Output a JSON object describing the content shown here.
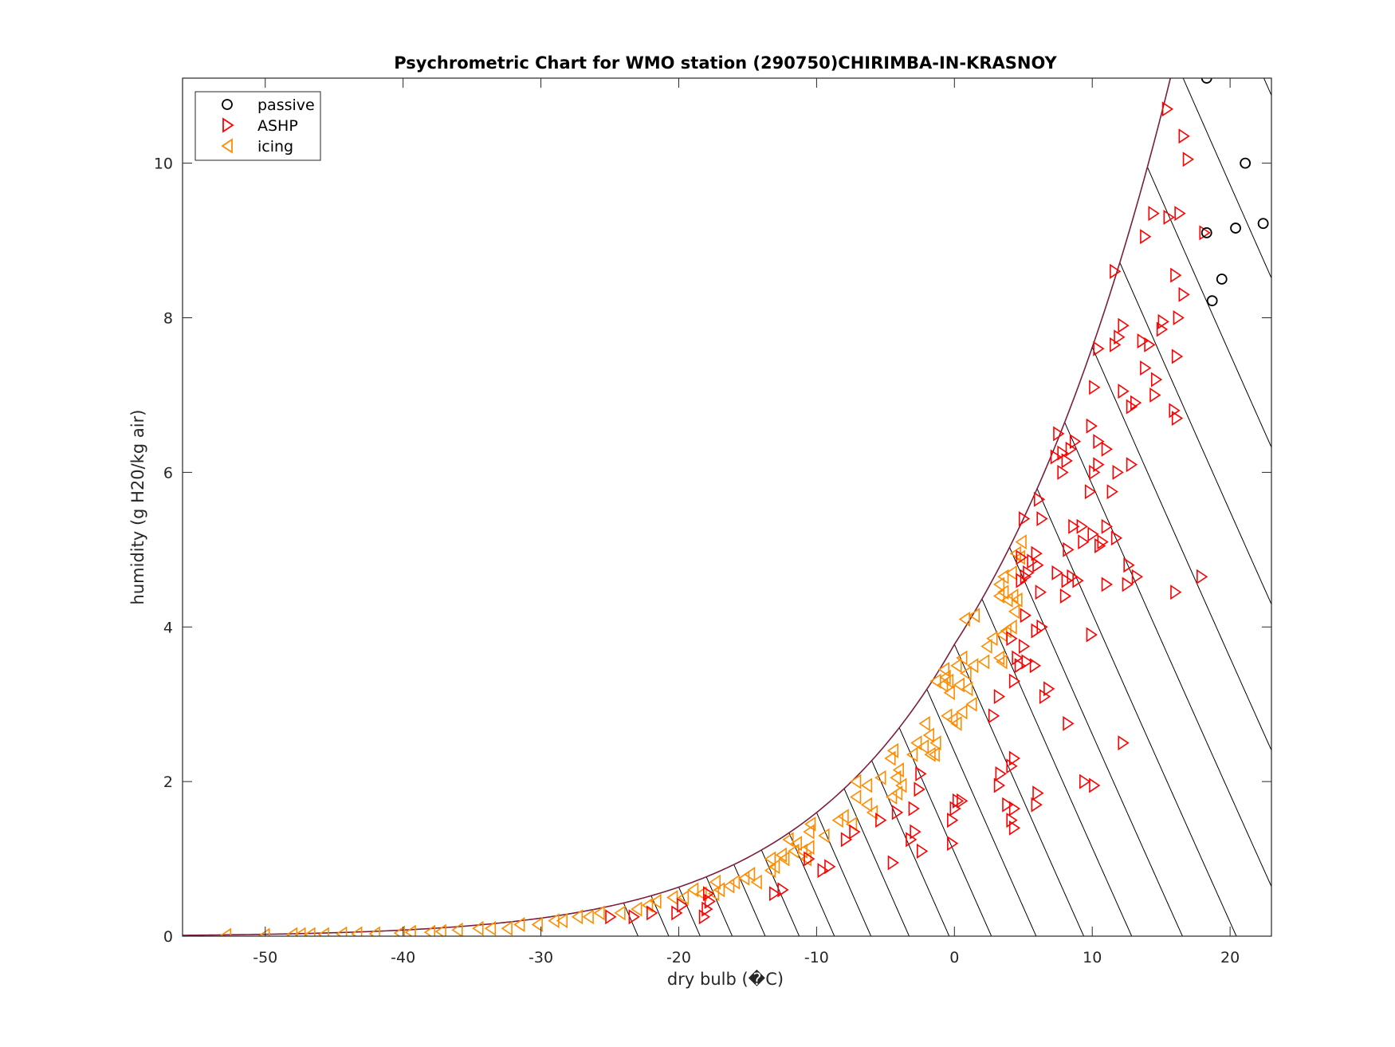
{
  "chart_data": {
    "type": "scatter",
    "title": "Psychrometric Chart for WMO station (290750)CHIRIMBA-IN-KRASNOY",
    "xlabel": "dry bulb (�C)",
    "ylabel": "humidity (g H20/kg air)",
    "xlim": [
      -56,
      23
    ],
    "ylim": [
      0,
      11.1
    ],
    "xticks": [
      -50,
      -40,
      -30,
      -20,
      -10,
      0,
      10,
      20
    ],
    "yticks": [
      0,
      2,
      4,
      6,
      8,
      10
    ],
    "grid": false,
    "legend_position": "top-left",
    "saturation_curve_color": "#7a1f3d",
    "enthalpy_line_color": "#000000",
    "series": [
      {
        "name": "passive",
        "marker": "circle",
        "color": "#000000",
        "points": [
          [
            18.3,
            11.1
          ],
          [
            21.1,
            10.0
          ],
          [
            22.4,
            9.22
          ],
          [
            20.4,
            9.16
          ],
          [
            18.3,
            9.1
          ],
          [
            19.4,
            8.5
          ],
          [
            18.7,
            8.22
          ]
        ]
      },
      {
        "name": "ASHP",
        "marker": "triangle-right",
        "color": "#ff0000",
        "points": [
          [
            15.4,
            10.7
          ],
          [
            16.6,
            10.35
          ],
          [
            16.9,
            10.05
          ],
          [
            14.4,
            9.35
          ],
          [
            15.5,
            9.3
          ],
          [
            16.3,
            9.35
          ],
          [
            18.1,
            9.1
          ],
          [
            13.8,
            9.05
          ],
          [
            11.6,
            8.6
          ],
          [
            16.0,
            8.55
          ],
          [
            16.6,
            8.3
          ],
          [
            16.2,
            8.0
          ],
          [
            15.1,
            7.95
          ],
          [
            15.0,
            7.85
          ],
          [
            12.2,
            7.9
          ],
          [
            13.6,
            7.7
          ],
          [
            14.1,
            7.65
          ],
          [
            11.6,
            7.65
          ],
          [
            11.9,
            7.75
          ],
          [
            10.4,
            7.6
          ],
          [
            16.1,
            7.5
          ],
          [
            13.8,
            7.35
          ],
          [
            14.6,
            7.2
          ],
          [
            12.2,
            7.05
          ],
          [
            10.1,
            7.1
          ],
          [
            14.5,
            7.0
          ],
          [
            13.1,
            6.9
          ],
          [
            12.8,
            6.85
          ],
          [
            15.9,
            6.8
          ],
          [
            16.1,
            6.7
          ],
          [
            9.9,
            6.6
          ],
          [
            7.5,
            6.5
          ],
          [
            10.4,
            6.4
          ],
          [
            8.7,
            6.4
          ],
          [
            8.4,
            6.3
          ],
          [
            11.0,
            6.3
          ],
          [
            7.8,
            6.25
          ],
          [
            7.3,
            6.2
          ],
          [
            8.1,
            6.15
          ],
          [
            12.8,
            6.1
          ],
          [
            10.4,
            6.1
          ],
          [
            10.1,
            6.0
          ],
          [
            11.8,
            6.0
          ],
          [
            7.8,
            6.0
          ],
          [
            11.4,
            5.75
          ],
          [
            9.8,
            5.75
          ],
          [
            6.1,
            5.65
          ],
          [
            6.3,
            5.4
          ],
          [
            5.0,
            5.4
          ],
          [
            9.2,
            5.3
          ],
          [
            11.0,
            5.3
          ],
          [
            8.6,
            5.3
          ],
          [
            10.0,
            5.2
          ],
          [
            11.7,
            5.15
          ],
          [
            10.7,
            5.1
          ],
          [
            9.3,
            5.1
          ],
          [
            10.5,
            5.05
          ],
          [
            8.2,
            5.0
          ],
          [
            5.9,
            4.95
          ],
          [
            4.8,
            4.9
          ],
          [
            5.6,
            4.85
          ],
          [
            6.0,
            4.8
          ],
          [
            12.6,
            4.8
          ],
          [
            7.4,
            4.7
          ],
          [
            5.3,
            4.7
          ],
          [
            5.1,
            4.65
          ],
          [
            4.8,
            4.6
          ],
          [
            13.2,
            4.65
          ],
          [
            17.9,
            4.65
          ],
          [
            8.5,
            4.65
          ],
          [
            8.9,
            4.6
          ],
          [
            8.1,
            4.6
          ],
          [
            11.0,
            4.55
          ],
          [
            12.5,
            4.55
          ],
          [
            16.0,
            4.45
          ],
          [
            6.2,
            4.45
          ],
          [
            8.0,
            4.4
          ],
          [
            5.1,
            4.15
          ],
          [
            6.3,
            4.0
          ],
          [
            5.9,
            3.95
          ],
          [
            4.1,
            3.85
          ],
          [
            9.9,
            3.9
          ],
          [
            5.0,
            3.75
          ],
          [
            4.5,
            3.6
          ],
          [
            5.2,
            3.55
          ],
          [
            5.8,
            3.5
          ],
          [
            4.7,
            3.5
          ],
          [
            4.3,
            3.3
          ],
          [
            6.8,
            3.2
          ],
          [
            3.2,
            3.1
          ],
          [
            6.5,
            3.1
          ],
          [
            2.8,
            2.85
          ],
          [
            8.2,
            2.75
          ],
          [
            12.2,
            2.5
          ],
          [
            4.3,
            2.3
          ],
          [
            4.1,
            2.2
          ],
          [
            3.3,
            2.1
          ],
          [
            -2.5,
            2.1
          ],
          [
            3.2,
            1.95
          ],
          [
            9.4,
            2.0
          ],
          [
            10.1,
            1.95
          ],
          [
            -2.6,
            1.9
          ],
          [
            6.0,
            1.85
          ],
          [
            5.9,
            1.7
          ],
          [
            0.2,
            1.75
          ],
          [
            0.5,
            1.75
          ],
          [
            0.0,
            1.65
          ],
          [
            3.8,
            1.7
          ],
          [
            -3.0,
            1.65
          ],
          [
            4.3,
            1.65
          ],
          [
            -4.2,
            1.6
          ],
          [
            -0.2,
            1.5
          ],
          [
            4.1,
            1.5
          ],
          [
            -5.4,
            1.5
          ],
          [
            4.3,
            1.4
          ],
          [
            -2.9,
            1.35
          ],
          [
            -3.2,
            1.25
          ],
          [
            -7.3,
            1.35
          ],
          [
            -7.9,
            1.25
          ],
          [
            -0.2,
            1.2
          ],
          [
            -2.4,
            1.1
          ],
          [
            -10.6,
            1.0
          ],
          [
            -4.5,
            0.95
          ],
          [
            -9.1,
            0.9
          ],
          [
            -9.6,
            0.85
          ],
          [
            -12.5,
            0.6
          ],
          [
            -13.1,
            0.55
          ],
          [
            -17.9,
            0.55
          ],
          [
            -17.8,
            0.45
          ],
          [
            -19.8,
            0.4
          ],
          [
            -18.0,
            0.35
          ],
          [
            -18.2,
            0.25
          ],
          [
            -22.0,
            0.3
          ],
          [
            -20.2,
            0.3
          ],
          [
            -23.3,
            0.25
          ],
          [
            -25.0,
            0.25
          ]
        ]
      },
      {
        "name": "icing",
        "marker": "triangle-left",
        "color": "#ff8c00",
        "points": [
          [
            4.9,
            5.1
          ],
          [
            4.5,
            4.95
          ],
          [
            4.8,
            4.9
          ],
          [
            4.2,
            4.7
          ],
          [
            3.6,
            4.65
          ],
          [
            3.3,
            4.55
          ],
          [
            4.3,
            4.4
          ],
          [
            3.6,
            4.45
          ],
          [
            3.3,
            4.4
          ],
          [
            3.9,
            4.35
          ],
          [
            4.6,
            4.35
          ],
          [
            4.4,
            4.2
          ],
          [
            1.5,
            4.15
          ],
          [
            0.8,
            4.1
          ],
          [
            4.2,
            4.0
          ],
          [
            3.8,
            3.95
          ],
          [
            3.5,
            3.9
          ],
          [
            2.8,
            3.85
          ],
          [
            2.4,
            3.75
          ],
          [
            3.3,
            3.6
          ],
          [
            3.5,
            3.55
          ],
          [
            2.2,
            3.55
          ],
          [
            1.4,
            3.5
          ],
          [
            0.6,
            3.6
          ],
          [
            0.2,
            3.5
          ],
          [
            0.9,
            3.4
          ],
          [
            -0.7,
            3.45
          ],
          [
            -0.4,
            3.3
          ],
          [
            0.4,
            3.25
          ],
          [
            -0.3,
            3.15
          ],
          [
            1.0,
            3.2
          ],
          [
            -1.3,
            3.3
          ],
          [
            -0.6,
            3.35
          ],
          [
            -0.8,
            3.25
          ],
          [
            1.3,
            3.0
          ],
          [
            0.6,
            2.9
          ],
          [
            -0.1,
            2.8
          ],
          [
            0.2,
            2.75
          ],
          [
            -0.5,
            2.85
          ],
          [
            -2.1,
            2.75
          ],
          [
            -1.8,
            2.6
          ],
          [
            -2.7,
            2.5
          ],
          [
            -1.3,
            2.5
          ],
          [
            -1.7,
            2.35
          ],
          [
            -2.2,
            2.45
          ],
          [
            -4.4,
            2.4
          ],
          [
            -3.0,
            2.35
          ],
          [
            -1.4,
            2.35
          ],
          [
            -4.6,
            2.3
          ],
          [
            -4.0,
            2.15
          ],
          [
            -4.2,
            2.05
          ],
          [
            -5.3,
            2.05
          ],
          [
            -7.1,
            2.0
          ],
          [
            -6.3,
            1.95
          ],
          [
            -3.8,
            1.95
          ],
          [
            -4.1,
            1.85
          ],
          [
            -4.5,
            1.8
          ],
          [
            -7.1,
            1.8
          ],
          [
            -6.3,
            1.7
          ],
          [
            -5.9,
            1.6
          ],
          [
            -8.0,
            1.55
          ],
          [
            -8.4,
            1.5
          ],
          [
            -7.4,
            1.45
          ],
          [
            -10.4,
            1.45
          ],
          [
            -10.5,
            1.35
          ],
          [
            -9.4,
            1.3
          ],
          [
            -12.0,
            1.25
          ],
          [
            -11.4,
            1.2
          ],
          [
            -10.5,
            1.15
          ],
          [
            -11.6,
            1.1
          ],
          [
            -12.5,
            1.05
          ],
          [
            -11.0,
            1.1
          ],
          [
            -10.7,
            1.0
          ],
          [
            -12.3,
            1.0
          ],
          [
            -13.3,
            1.0
          ],
          [
            -13.0,
            0.9
          ],
          [
            -13.3,
            0.85
          ],
          [
            -14.8,
            0.8
          ],
          [
            -15.2,
            0.75
          ],
          [
            -14.3,
            0.7
          ],
          [
            -15.9,
            0.7
          ],
          [
            -17.3,
            0.7
          ],
          [
            -16.3,
            0.65
          ],
          [
            -17.0,
            0.6
          ],
          [
            -18.9,
            0.6
          ],
          [
            -17.4,
            0.55
          ],
          [
            -18.3,
            0.55
          ],
          [
            -19.6,
            0.5
          ],
          [
            -20.4,
            0.5
          ],
          [
            -21.6,
            0.45
          ],
          [
            -22.2,
            0.4
          ],
          [
            -23.0,
            0.35
          ],
          [
            -24.2,
            0.3
          ],
          [
            -25.7,
            0.3
          ],
          [
            -26.5,
            0.25
          ],
          [
            -27.3,
            0.25
          ],
          [
            -28.4,
            0.2
          ],
          [
            -29.0,
            0.2
          ],
          [
            -30.2,
            0.15
          ],
          [
            -31.5,
            0.15
          ],
          [
            -32.4,
            0.1
          ],
          [
            -33.6,
            0.1
          ],
          [
            -34.5,
            0.1
          ],
          [
            -36.0,
            0.08
          ],
          [
            -37.2,
            0.06
          ],
          [
            -38.0,
            0.05
          ],
          [
            -39.4,
            0.05
          ],
          [
            -40.2,
            0.04
          ],
          [
            -42.0,
            0.03
          ],
          [
            -43.3,
            0.03
          ],
          [
            -44.4,
            0.03
          ],
          [
            -45.7,
            0.02
          ],
          [
            -46.7,
            0.02
          ],
          [
            -47.4,
            0.02
          ],
          [
            -48.0,
            0.02
          ],
          [
            -50.0,
            0.01
          ],
          [
            -52.8,
            0.01
          ]
        ]
      }
    ]
  }
}
